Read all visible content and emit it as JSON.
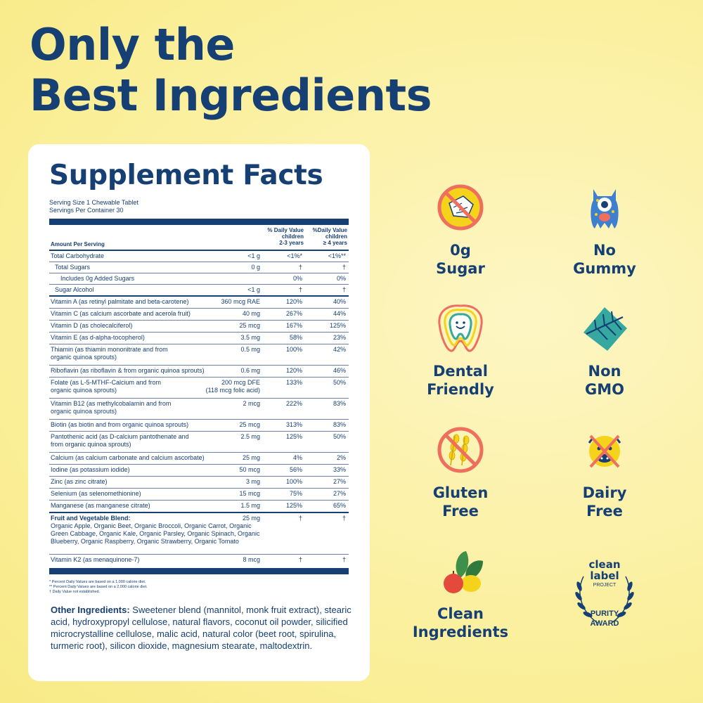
{
  "headline": {
    "line1": "Only the",
    "line2": "Best Ingredients"
  },
  "facts": {
    "title": "Supplement Facts",
    "serving_size": "Serving Size 1 Chewable Tablet",
    "servings_per_container": "Servings Per Container 30",
    "amount_per_serving": "Amount Per Serving",
    "dv1_header": [
      "% Daily Value",
      "children",
      "2-3 years"
    ],
    "dv2_header": [
      "%Daily Value",
      "children",
      "≥ 4 years"
    ],
    "rows": [
      {
        "name": "Total Carbohydrate",
        "amount": "<1 g",
        "dv1": "<1%*",
        "dv2": "<1%**"
      },
      {
        "name": "Total Sugars",
        "amount": "0 g",
        "dv1": "†",
        "dv2": "†"
      },
      {
        "name": "Includes 0g Added Sugars",
        "amount": "",
        "dv1": "0%",
        "dv2": "0%"
      },
      {
        "name": "Sugar Alcohol",
        "amount": "<1 g",
        "dv1": "†",
        "dv2": "†"
      },
      {
        "name": "Vitamin A (as retinyl palmitate and beta-carotene)",
        "amount": "360 mcg RAE",
        "dv1": "120%",
        "dv2": "40%"
      },
      {
        "name": "Vitamin C (as calcium ascorbate and acerola fruit)",
        "amount": "40 mg",
        "dv1": "267%",
        "dv2": "44%"
      },
      {
        "name": "Vitamin D (as cholecalciferol)",
        "amount": "25 mcg",
        "dv1": "167%",
        "dv2": "125%"
      },
      {
        "name": "Vitamin E (as d-alpha-tocopherol)",
        "amount": "3.5 mg",
        "dv1": "58%",
        "dv2": "23%"
      },
      {
        "name": "Thiamin (as thiamin mononitrate and from organic quinoa sprouts)",
        "amount": "0.5 mg",
        "dv1": "100%",
        "dv2": "42%"
      },
      {
        "name": "Riboflavin (as riboflavin & from organic quinoa sprouts)",
        "amount": "0.6 mg",
        "dv1": "120%",
        "dv2": "46%"
      },
      {
        "name": "Folate (as L-5-MTHF-Calcium and from organic quinoa sprouts)",
        "amount": "200 mcg DFE",
        "amount2": "(118 mcg folic acid)",
        "dv1": "133%",
        "dv2": "50%"
      },
      {
        "name": "Vitamin B12 (as methylcobalamin and from organic quinoa sprouts)",
        "amount": "2 mcg",
        "dv1": "222%",
        "dv2": "83%"
      },
      {
        "name": "Biotin (as biotin and from organic quinoa sprouts)",
        "amount": "25 mcg",
        "dv1": "313%",
        "dv2": "83%"
      },
      {
        "name": "Pantothenic acid (as D-calcium pantothenate and from organic quinoa sprouts)",
        "amount": "2.5 mg",
        "dv1": "125%",
        "dv2": "50%"
      },
      {
        "name": "Calcium (as calcium carbonate and calcium ascorbate)",
        "amount": "25 mg",
        "dv1": "4%",
        "dv2": "2%"
      },
      {
        "name": "Iodine (as potassium iodide)",
        "amount": "50 mcg",
        "dv1": "56%",
        "dv2": "33%"
      },
      {
        "name": "Zinc (as zinc citrate)",
        "amount": "3 mg",
        "dv1": "100%",
        "dv2": "27%"
      },
      {
        "name": "Selenium (as selenomethionine)",
        "amount": "15 mcg",
        "dv1": "75%",
        "dv2": "27%"
      },
      {
        "name": "Manganese (as manganese citrate)",
        "amount": "1.5 mg",
        "dv1": "125%",
        "dv2": "65%"
      },
      {
        "name": "Fruit and Vegetable Blend:",
        "amount": "25 mg",
        "dv1": "†",
        "dv2": "†",
        "detail": "Organic Apple, Organic Beet, Organic Broccoli, Organic Carrot, Organic Green Cabbage, Organic Kale, Organic Parsley, Organic Spinach, Organic Blueberry, Organic Raspberry, Organic Strawberry, Organic Tomato"
      },
      {
        "name": "Vitamin K2 (as menaquinone-7)",
        "amount": "8 mcg",
        "dv1": "†",
        "dv2": "†"
      }
    ],
    "footnotes": [
      "* Percent Daily Values are based on a 1,000 calorie diet.",
      "** Percent Daily Values are based on a 2,000 calorie diet.",
      "† Daily Value not established."
    ],
    "other_label": "Other Ingredients:",
    "other_text": " Sweetener blend (mannitol, monk fruit extract), stearic acid, hydroxypropyl cellulose, natural flavors, coconut oil powder, silicified microcrystalline cellulose, malic acid, natural color (beet root, spirulina, turmeric root), silicon dioxide, magnesium stearate, maltodextrin."
  },
  "badges": {
    "sugar": [
      "0g",
      "Sugar"
    ],
    "gummy": [
      "No",
      "Gummy"
    ],
    "dental": [
      "Dental",
      "Friendly"
    ],
    "gmo": [
      "Non",
      "GMO"
    ],
    "gluten": [
      "Gluten",
      "Free"
    ],
    "dairy": [
      "Dairy",
      "Free"
    ],
    "clean": [
      "Clean",
      "Ingredients"
    ],
    "award": {
      "line1": "clean",
      "line2": "label",
      "line3": "PROJECT",
      "line4": "PURITY",
      "line5": "AWARD"
    }
  },
  "colors": {
    "navy": "#163f73",
    "coral": "#ef6f5e",
    "yellow": "#f5d31b",
    "teal": "#35a9a0"
  }
}
